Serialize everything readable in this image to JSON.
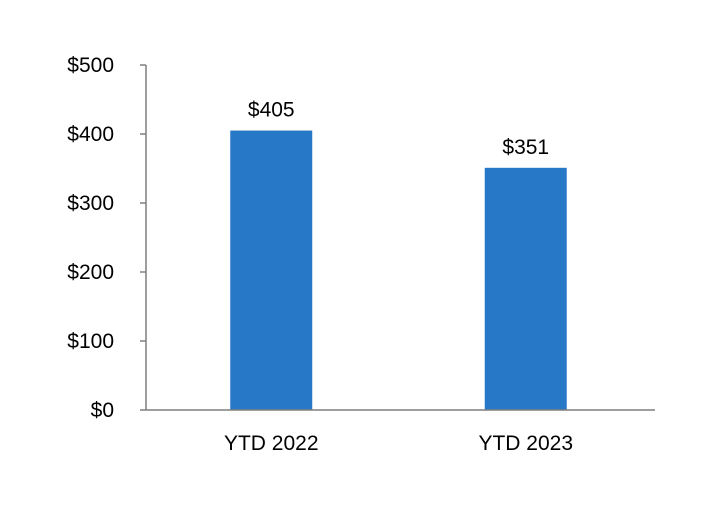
{
  "chart_data": {
    "type": "bar",
    "categories": [
      "YTD 2022",
      "YTD 2023"
    ],
    "values": [
      405,
      351
    ],
    "data_labels": [
      "$405",
      "$351"
    ],
    "title": "",
    "xlabel": "",
    "ylabel": "",
    "ylim": [
      0,
      500
    ],
    "yticks": [
      0,
      100,
      200,
      300,
      400,
      500
    ],
    "ytick_labels": [
      "$0",
      "$100",
      "$200",
      "$300",
      "$400",
      "$500"
    ],
    "grid": false,
    "legend": "none",
    "bar_color": "#2878C8",
    "axis_color": "#7F7F7F"
  }
}
